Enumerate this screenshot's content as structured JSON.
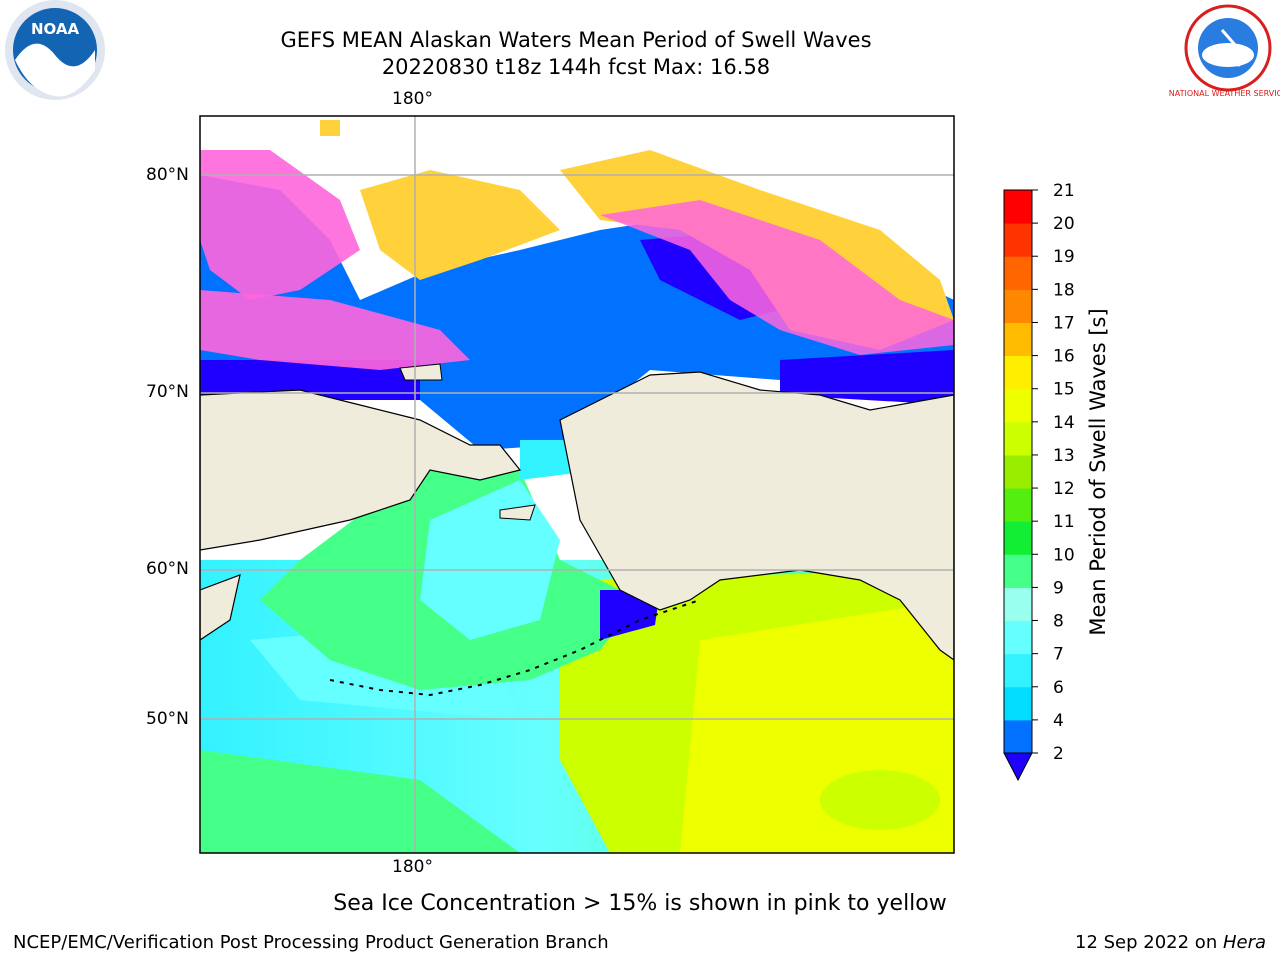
{
  "header": {
    "title": "GEFS MEAN Alaskan Waters Mean Period of Swell Waves",
    "subtitle": "20220830 t18z 144h fcst   Max: 16.58"
  },
  "logos": {
    "left": "NOAA",
    "right": "NATIONAL WEATHER SERVICE"
  },
  "map": {
    "lon_labels": {
      "top": "180°",
      "bottom": "180°"
    },
    "lat_labels": [
      "80°N",
      "70°N",
      "60°N",
      "50°N"
    ],
    "colors": {
      "land": "#efecdc",
      "coast": "#000000",
      "grid": "#b0b0b0",
      "ice_pink": "#ff66dd",
      "ice_yellow": "#ffd23c"
    }
  },
  "chart_data": {
    "type": "heatmap",
    "title": "GEFS MEAN Alaskan Waters Mean Period of Swell Waves",
    "max_value": 16.58,
    "units": "s",
    "colorbar": {
      "label": "Mean Period of Swell Waves [s]",
      "ticks": [
        "21",
        "20",
        "19",
        "18",
        "17",
        "16",
        "15",
        "14",
        "13",
        "12",
        "11",
        "10",
        "9",
        "8",
        "7",
        "6",
        "4",
        "2"
      ],
      "levels": [
        2,
        4,
        6,
        7,
        8,
        9,
        10,
        11,
        12,
        13,
        14,
        15,
        16,
        17,
        18,
        19,
        20,
        21
      ],
      "colors": [
        "#0072ff",
        "#00ddff",
        "#33f2ff",
        "#66ffff",
        "#99ffee",
        "#44ff88",
        "#11ee33",
        "#55ee11",
        "#99ee00",
        "#ccff00",
        "#eeff00",
        "#ffee00",
        "#ffbb00",
        "#ff8800",
        "#ff6600",
        "#ff3300",
        "#ff0000"
      ],
      "under_color": "#1f00ff"
    }
  },
  "caption": "Sea Ice Concentration > 15% is shown in pink to yellow",
  "footer": {
    "left": "NCEP/EMC/Verification Post Processing Product Generation Branch",
    "date": "12 Sep 2022 on ",
    "machine": "Hera"
  }
}
